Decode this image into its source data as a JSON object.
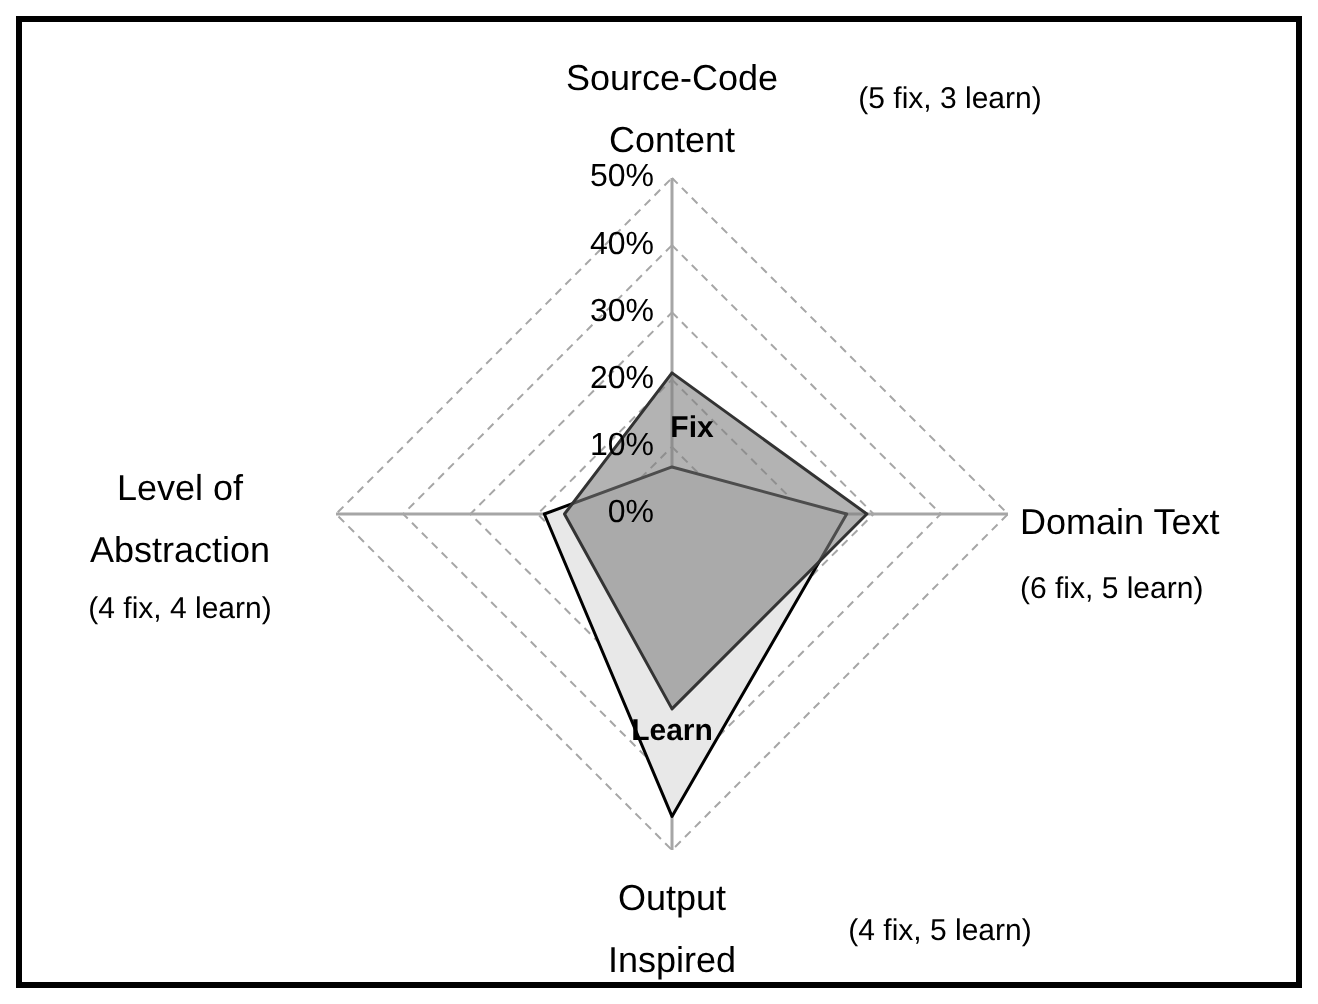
{
  "chart_data": {
    "type": "radar",
    "categories": [
      "Source-Code Content",
      "Domain Text",
      "Output Inspired",
      "Level of Abstraction"
    ],
    "series": [
      {
        "name": "Learn",
        "color": "#e8e8e8",
        "values": [
          7,
          26,
          45,
          19
        ]
      },
      {
        "name": "Fix",
        "color": "#808080",
        "values": [
          21,
          29,
          29,
          16
        ]
      }
    ],
    "ylim": [
      0,
      50
    ],
    "yticks": [
      {
        "value": 0,
        "label": "0%"
      },
      {
        "value": 10,
        "label": "10%"
      },
      {
        "value": 20,
        "label": "20%"
      },
      {
        "value": 30,
        "label": "30%"
      },
      {
        "value": 40,
        "label": "40%"
      },
      {
        "value": 50,
        "label": "50%"
      }
    ],
    "grid": true,
    "annotations": [
      "(5 fix, 3 learn)",
      "(6 fix, 5 learn)",
      "(4 fix, 5 learn)",
      "(4 fix, 4 learn)"
    ]
  }
}
